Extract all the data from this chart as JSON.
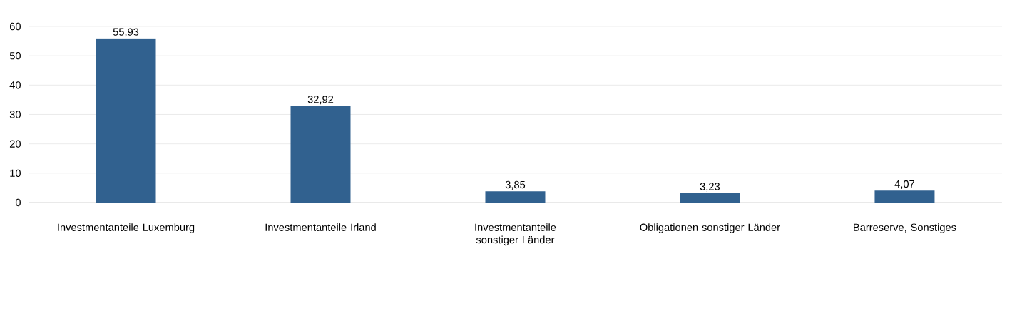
{
  "chart_data": {
    "type": "bar",
    "categories": [
      "Investmentanteile Luxemburg",
      "Investmentanteile Irland",
      "Investmentanteile sonstiger Länder",
      "Obligationen sonstiger Länder",
      "Barreserve, Sonstiges"
    ],
    "values": [
      55.93,
      32.92,
      3.85,
      3.23,
      4.07
    ],
    "value_labels": [
      "55,93",
      "32,92",
      "3,85",
      "3,23",
      "4,07"
    ],
    "color": "#31618f",
    "ylim": [
      0,
      60
    ],
    "yticks": [
      0,
      10,
      20,
      30,
      40,
      50,
      60
    ],
    "grid": "y"
  }
}
